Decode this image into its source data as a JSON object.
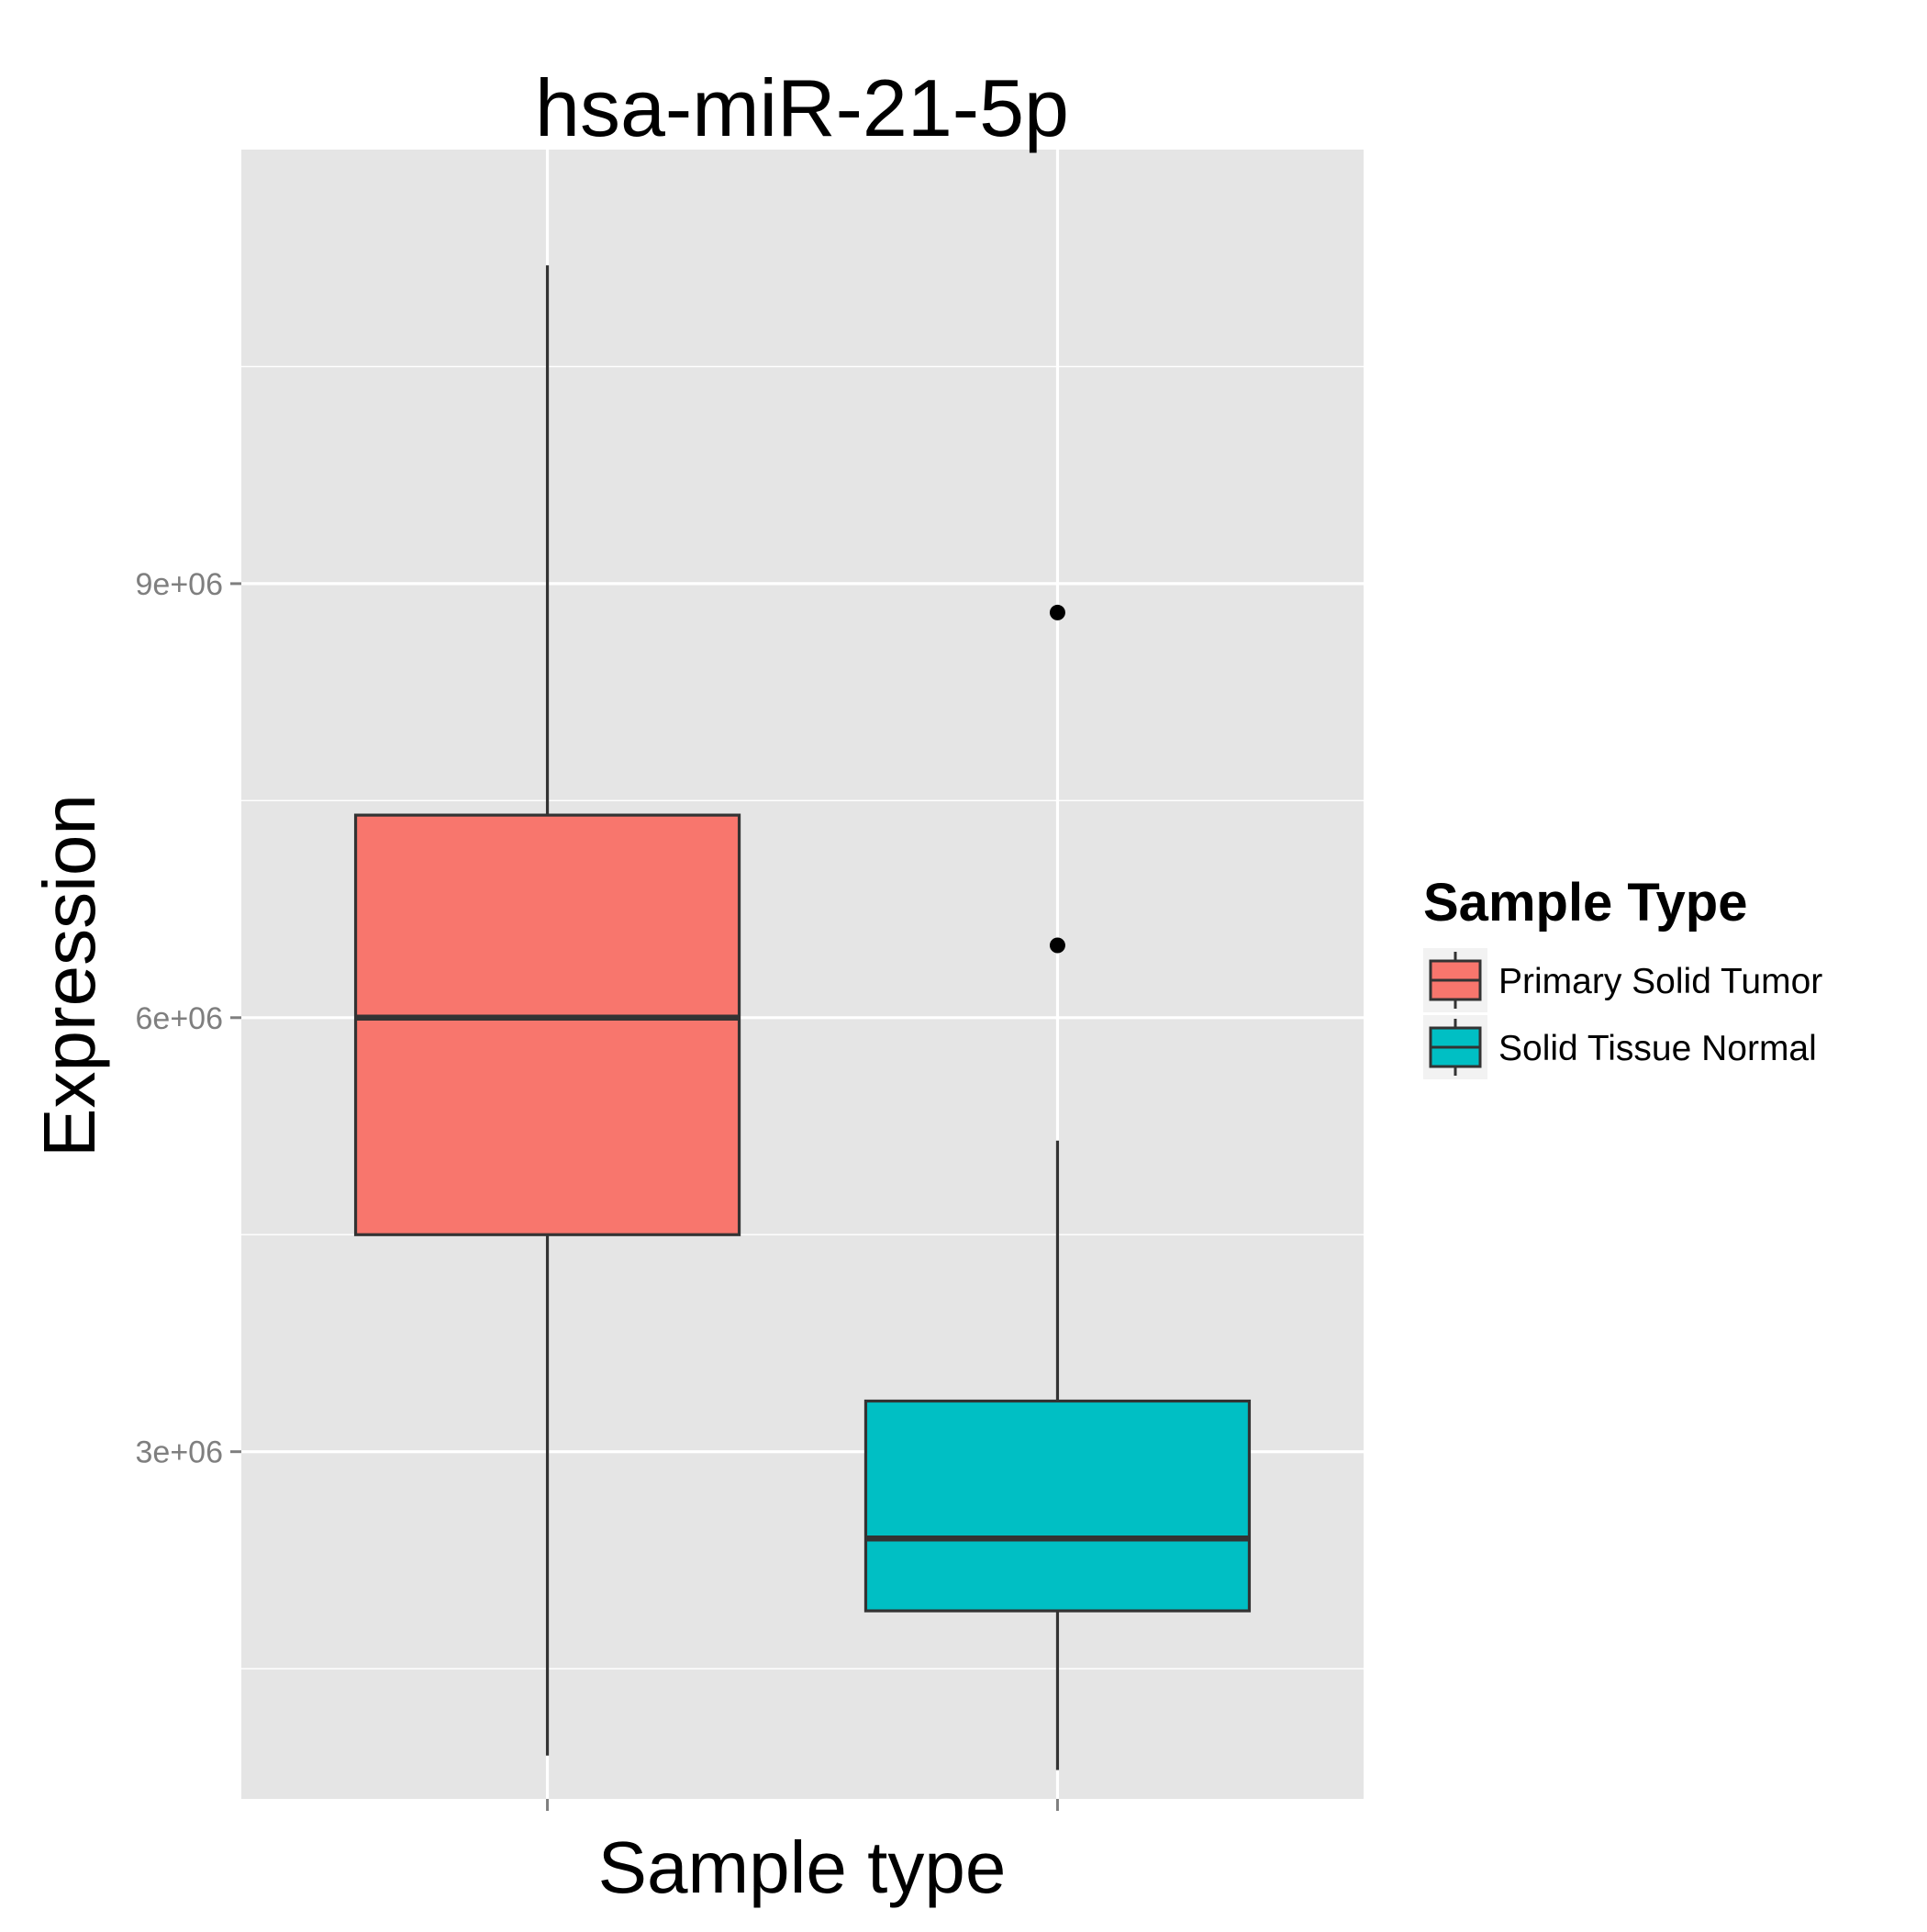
{
  "chart_data": {
    "type": "boxplot",
    "title": "hsa-miR-21-5p",
    "xlabel": "Sample type",
    "ylabel": "Expression",
    "ylim": [
      600000,
      12000000
    ],
    "y_ticks": [
      {
        "value": 3000000,
        "label": "3e+06"
      },
      {
        "value": 6000000,
        "label": "6e+06"
      },
      {
        "value": 9000000,
        "label": "9e+06"
      }
    ],
    "x_tick_labels": [
      "",
      ""
    ],
    "grid": true,
    "legend": {
      "title": "Sample Type",
      "placement": "right"
    },
    "series": [
      {
        "name": "Primary Solid Tumor",
        "color": "#F8766D",
        "whisker_low": 900000,
        "q1": 4500000,
        "median": 6000000,
        "q3": 7400000,
        "whisker_high": 11200000,
        "outliers": []
      },
      {
        "name": "Solid Tissue Normal",
        "color": "#00BFC4",
        "whisker_low": 800000,
        "q1": 1900000,
        "median": 2400000,
        "q3": 3350000,
        "whisker_high": 5150000,
        "outliers": [
          6500000,
          8800000
        ]
      }
    ]
  },
  "colors": {
    "panel_background": "#E5E5E5",
    "grid": "#FFFFFF",
    "box_outline": "#333333",
    "outlier": "#000000"
  }
}
